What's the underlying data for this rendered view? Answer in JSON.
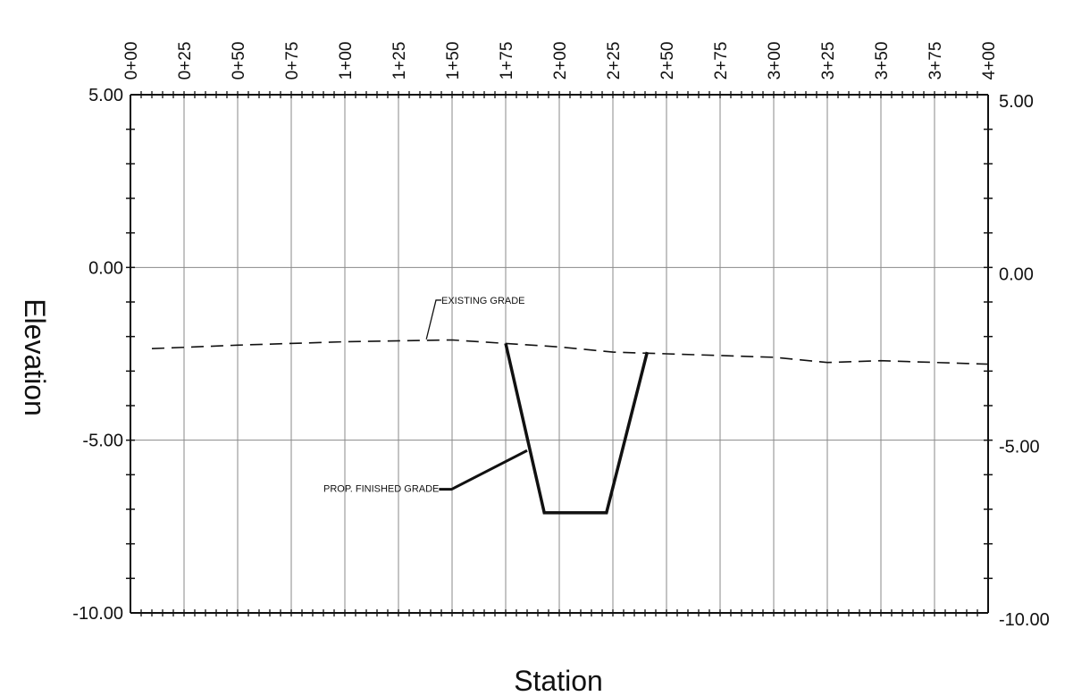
{
  "chart_data": {
    "type": "line",
    "title": "",
    "xlabel": "Station",
    "ylabel": "Elevation",
    "xlim": [
      0,
      400
    ],
    "ylim": [
      -10,
      5
    ],
    "x_ticks": [
      "0+00",
      "0+25",
      "0+50",
      "0+75",
      "1+00",
      "1+25",
      "1+50",
      "1+75",
      "2+00",
      "2+25",
      "2+50",
      "2+75",
      "3+00",
      "3+25",
      "3+50",
      "3+75",
      "4+00"
    ],
    "y_ticks": [
      "5.00",
      "0.00",
      "-5.00",
      "-10.00"
    ],
    "grid": true,
    "series": [
      {
        "name": "EXISTING GRADE",
        "style": "dashed",
        "points": [
          [
            10,
            -2.35
          ],
          [
            50,
            -2.25
          ],
          [
            100,
            -2.15
          ],
          [
            150,
            -2.1
          ],
          [
            175,
            -2.2
          ],
          [
            200,
            -2.3
          ],
          [
            225,
            -2.45
          ],
          [
            250,
            -2.5
          ],
          [
            275,
            -2.55
          ],
          [
            300,
            -2.6
          ],
          [
            325,
            -2.75
          ],
          [
            350,
            -2.7
          ],
          [
            400,
            -2.8
          ]
        ]
      },
      {
        "name": "PROP. FINISHED GRADE",
        "style": "solid",
        "points": [
          [
            175,
            -2.2
          ],
          [
            193,
            -7.1
          ],
          [
            222,
            -7.1
          ],
          [
            241,
            -2.45
          ]
        ]
      }
    ],
    "annotations": [
      {
        "text": "EXISTING GRADE",
        "x": 145,
        "y": -1.05,
        "pointer": [
          138,
          -2.08
        ]
      },
      {
        "text": "PROP. FINISHED GRADE",
        "x": 90,
        "y": -6.5,
        "pointer": [
          185,
          -5.3
        ]
      }
    ]
  }
}
